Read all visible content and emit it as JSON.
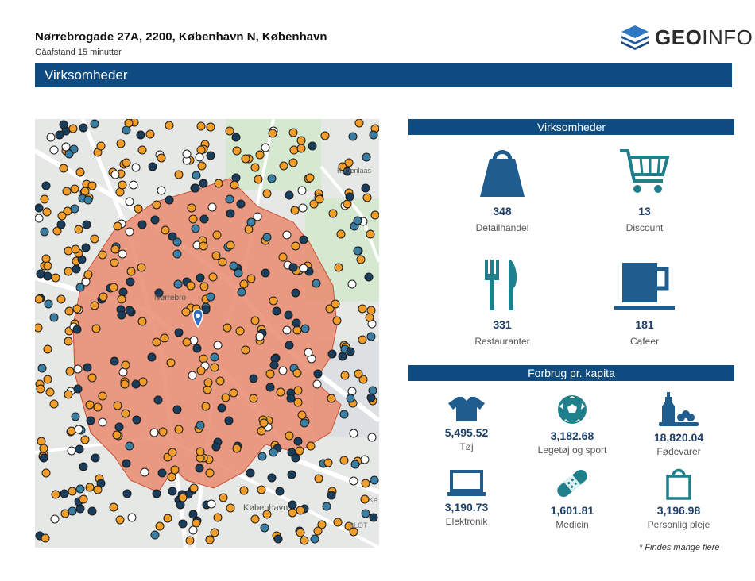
{
  "header": {
    "address": "Nørrebrogade 27A, 2200, København N, København",
    "subtitle": "Gåafstand 15 minutter",
    "logo_bold": "GEO",
    "logo_light": "INFO"
  },
  "banner": {
    "title": "Virksomheder"
  },
  "map": {
    "labels": [
      "Nørrebro",
      "København",
      "Købenlaas",
      "SLOT",
      "Ke"
    ],
    "colors": {
      "area": "#e98a6f",
      "pin": "#2f6fc7",
      "dot": "#f29d2a"
    }
  },
  "businesses": {
    "header": "Virksomheder",
    "items": [
      {
        "icon": "shopping-bag-icon",
        "value": "348",
        "label": "Detailhandel"
      },
      {
        "icon": "shopping-cart-icon",
        "value": "13",
        "label": "Discount"
      },
      {
        "icon": "fork-knife-icon",
        "value": "331",
        "label": "Restauranter"
      },
      {
        "icon": "coffee-cup-icon",
        "value": "181",
        "label": "Cafeer"
      }
    ]
  },
  "spending": {
    "header": "Forbrug pr. kapita",
    "items": [
      {
        "icon": "tshirt-icon",
        "value": "5,495.52",
        "label": "Tøj"
      },
      {
        "icon": "soccer-ball-icon",
        "value": "3,182.68",
        "label": "Legetøj og sport"
      },
      {
        "icon": "food-icon",
        "value": "18,820.04",
        "label": "Fødevarer"
      },
      {
        "icon": "laptop-icon",
        "value": "3,190.73",
        "label": "Elektronik"
      },
      {
        "icon": "bandage-icon",
        "value": "1,601.81",
        "label": "Medicin"
      },
      {
        "icon": "shopping-bag-icon",
        "value": "3,196.98",
        "label": "Personlig pleje"
      }
    ],
    "footnote": "* Findes mange flere"
  },
  "colors": {
    "brand": "#0f4c81",
    "icon": "#1f5d8f",
    "icon_teal": "#1f7f8a"
  }
}
